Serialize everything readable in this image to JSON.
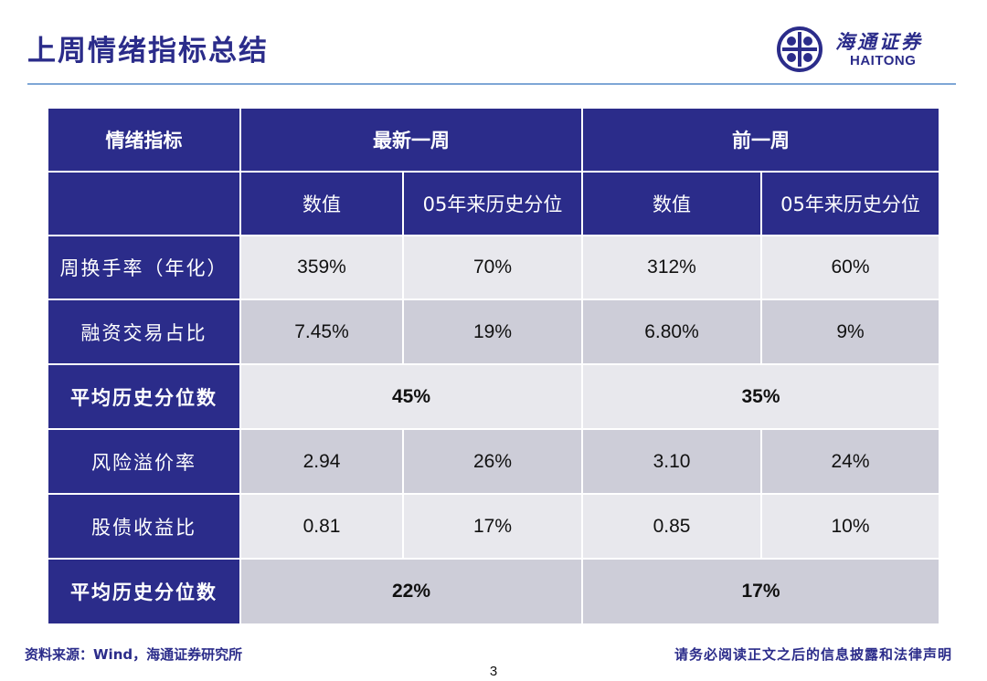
{
  "title": "上周情绪指标总结",
  "logo": {
    "name_cn": "海通证券",
    "name_en": "HAITONG"
  },
  "table": {
    "header": {
      "indicator": "情绪指标",
      "latest_week": "最新一周",
      "prev_week": "前一周"
    },
    "subheader": {
      "value": "数值",
      "percentile": "05年来历史分位"
    },
    "rows": [
      {
        "label": "周换手率（年化）",
        "latest_value": "359%",
        "latest_pct": "70%",
        "prev_value": "312%",
        "prev_pct": "60%"
      },
      {
        "label": "融资交易占比",
        "latest_value": "7.45%",
        "latest_pct": "19%",
        "prev_value": "6.80%",
        "prev_pct": "9%"
      },
      {
        "label": "平均历史分位数",
        "latest": "45%",
        "prev": "35%"
      },
      {
        "label": "风险溢价率",
        "latest_value": "2.94",
        "latest_pct": "26%",
        "prev_value": "3.10",
        "prev_pct": "24%"
      },
      {
        "label": "股债收益比",
        "latest_value": "0.81",
        "latest_pct": "17%",
        "prev_value": "0.85",
        "prev_pct": "10%"
      },
      {
        "label": "平均历史分位数",
        "latest": "22%",
        "prev": "17%"
      }
    ]
  },
  "footer": {
    "source": "资料来源：Wind，海通证券研究所",
    "disclaimer": "请务必阅读正文之后的信息披露和法律声明",
    "page": "3"
  },
  "colors": {
    "primary": "#2b2c8a",
    "cell_light": "#e8e8ed",
    "cell_dark": "#cdcdd8",
    "rule": "#7ea6d6"
  }
}
